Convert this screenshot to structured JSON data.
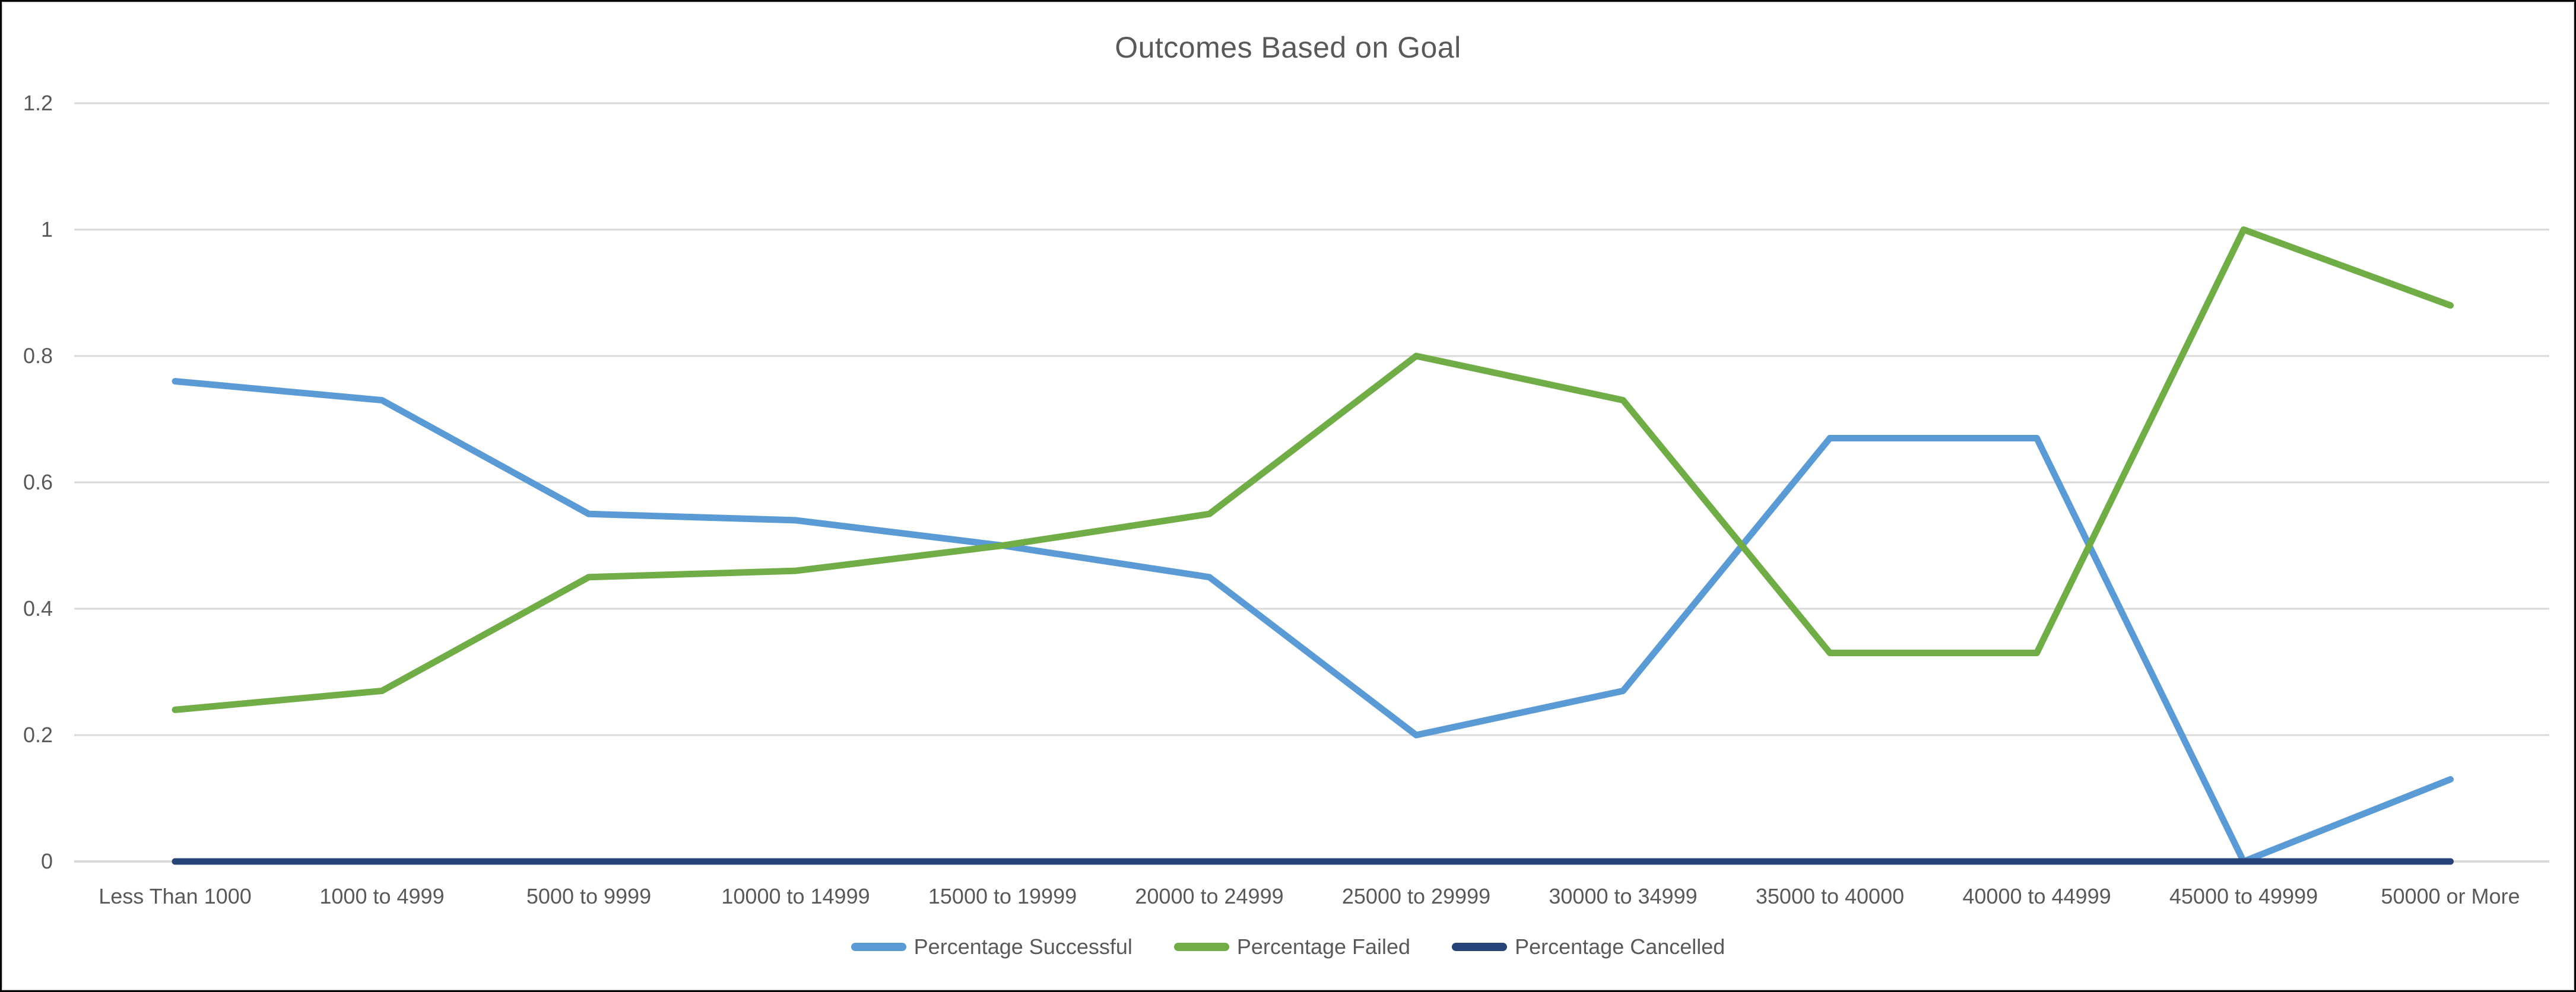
{
  "chart_data": {
    "type": "line",
    "title": "Outcomes Based on Goal",
    "xlabel": "",
    "ylabel": "",
    "grid": true,
    "legend_position": "bottom",
    "ylim": [
      0,
      1.2
    ],
    "yticks": [
      {
        "label": "0",
        "value": 0
      },
      {
        "label": "0.2",
        "value": 0.2
      },
      {
        "label": "0.4",
        "value": 0.4
      },
      {
        "label": "0.6",
        "value": 0.6
      },
      {
        "label": "0.8",
        "value": 0.8
      },
      {
        "label": "1",
        "value": 1
      },
      {
        "label": "1.2",
        "value": 1.2
      }
    ],
    "categories": [
      "Less Than 1000",
      "1000 to 4999",
      "5000 to 9999",
      "10000 to 14999",
      "15000 to 19999",
      "20000 to 24999",
      "25000 to 29999",
      "30000 to 34999",
      "35000 to 40000",
      "40000 to 44999",
      "45000 to 49999",
      "50000 or More"
    ],
    "series": [
      {
        "name": "Percentage Successful",
        "color": "#5B9BD5",
        "values": [
          0.76,
          0.73,
          0.55,
          0.54,
          0.5,
          0.45,
          0.2,
          0.27,
          0.67,
          0.67,
          0,
          0.13
        ]
      },
      {
        "name": "Percentage Failed",
        "color": "#70AD47",
        "values": [
          0.24,
          0.27,
          0.45,
          0.46,
          0.5,
          0.55,
          0.8,
          0.73,
          0.33,
          0.33,
          1,
          0.88
        ]
      },
      {
        "name": "Percentage Cancelled",
        "color": "#264478",
        "values": [
          0,
          0,
          0,
          0,
          0,
          0,
          0,
          0,
          0,
          0,
          0,
          0
        ]
      }
    ]
  },
  "colors": {
    "gridline": "#D9D9D9",
    "axis_line": "#D9D9D9",
    "text": "#595959",
    "border": "#000000",
    "background": "#FFFFFF"
  }
}
